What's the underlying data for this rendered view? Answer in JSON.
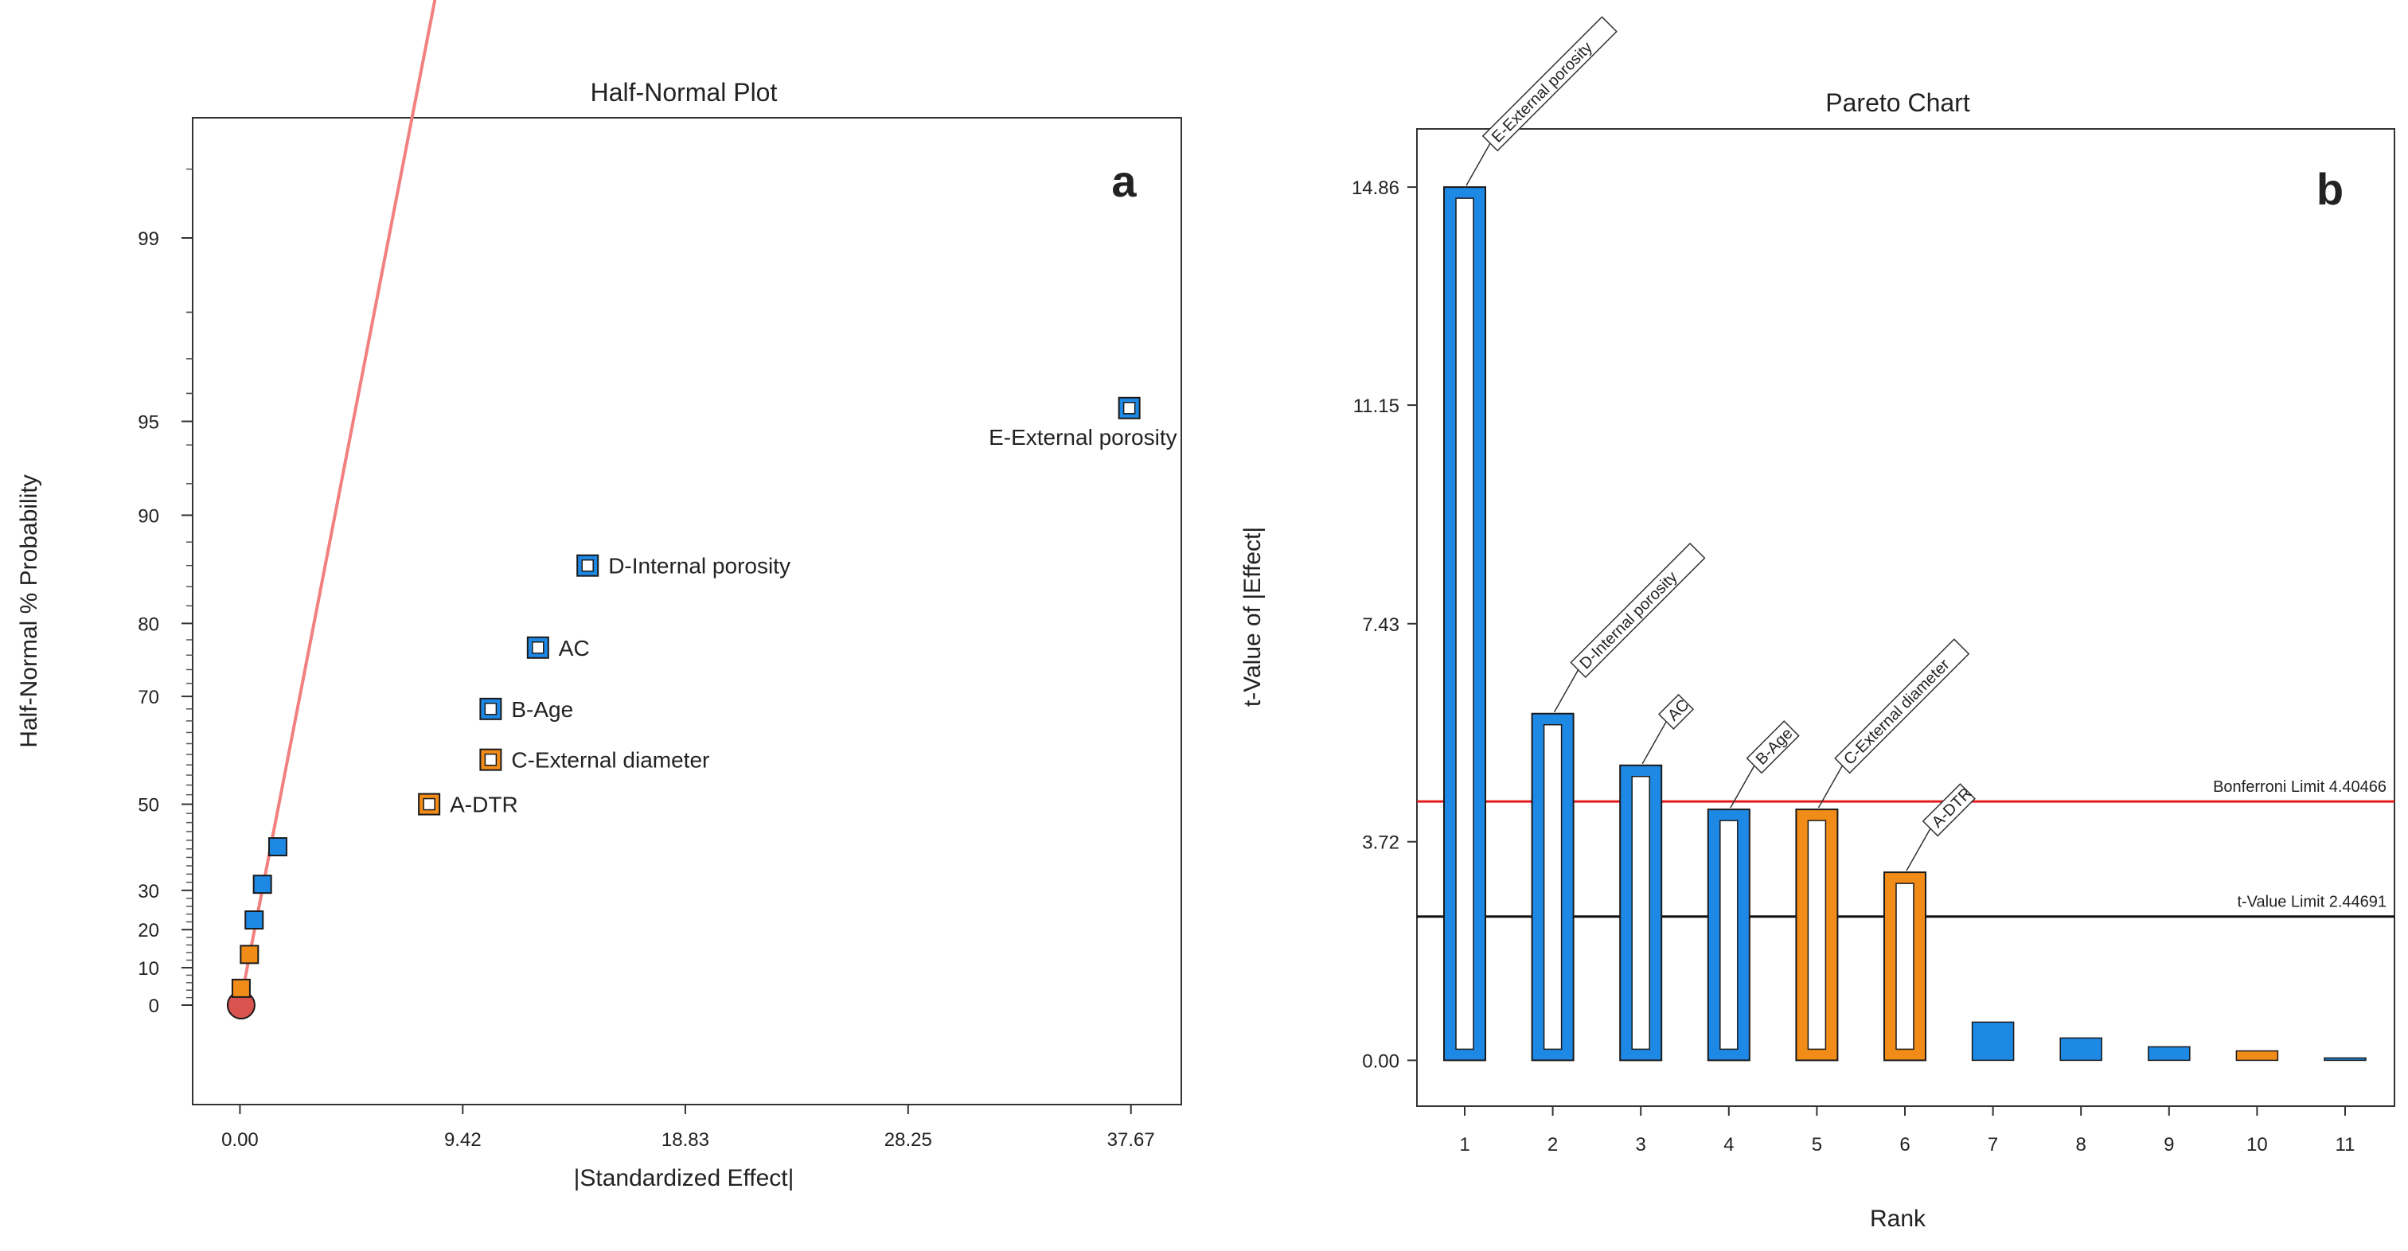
{
  "colors": {
    "blue": "#1e88e5",
    "orange": "#f28c18",
    "outline": "#1a1a1a",
    "fitline": "#f28080",
    "origin": "#d9534f",
    "bonferroni": "#e31a1c",
    "tlimit": "#111111"
  },
  "chart_data": [
    {
      "type": "scatter",
      "title": "Half-Normal Plot",
      "panel_label": "a",
      "xlabel": "|Standardized Effect|",
      "ylabel": "Half-Normal % Probability",
      "xlim": [
        -2.0,
        39.8
      ],
      "x_ticks": [
        {
          "value": 0.0,
          "label": "0.00"
        },
        {
          "value": 9.42,
          "label": "9.42"
        },
        {
          "value": 18.83,
          "label": "18.83"
        },
        {
          "value": 28.25,
          "label": "28.25"
        },
        {
          "value": 37.67,
          "label": "37.67"
        }
      ],
      "y_ticks": [
        {
          "value": 0,
          "label": "0"
        },
        {
          "value": 10,
          "label": "10"
        },
        {
          "value": 20,
          "label": "20"
        },
        {
          "value": 30,
          "label": "30"
        },
        {
          "value": 50,
          "label": "50"
        },
        {
          "value": 70,
          "label": "70"
        },
        {
          "value": 80,
          "label": "80"
        },
        {
          "value": 90,
          "label": "90"
        },
        {
          "value": 95,
          "label": "95"
        },
        {
          "value": 99,
          "label": "99"
        }
      ],
      "fit_line": {
        "x": [
          0.0,
          8.5
        ],
        "p": [
          0,
          99.95
        ]
      },
      "points": [
        {
          "x": 0.05,
          "p": 0,
          "kind": "origin",
          "label": ""
        },
        {
          "x": 0.05,
          "p": 4.5,
          "kind": "error",
          "color": "orange",
          "label": ""
        },
        {
          "x": 0.4,
          "p": 13.5,
          "kind": "error",
          "color": "orange",
          "label": ""
        },
        {
          "x": 0.6,
          "p": 22.5,
          "kind": "error",
          "color": "blue",
          "label": ""
        },
        {
          "x": 0.95,
          "p": 31.5,
          "kind": "error",
          "color": "blue",
          "label": ""
        },
        {
          "x": 1.6,
          "p": 40.5,
          "kind": "error",
          "color": "blue",
          "label": ""
        },
        {
          "x": 8.0,
          "p": 50,
          "kind": "effect",
          "color": "orange",
          "label": "A-DTR"
        },
        {
          "x": 10.6,
          "p": 59,
          "kind": "effect",
          "color": "orange",
          "label": "C-External diameter"
        },
        {
          "x": 10.6,
          "p": 68,
          "kind": "effect",
          "color": "blue",
          "label": "B-Age"
        },
        {
          "x": 12.6,
          "p": 77,
          "kind": "effect",
          "color": "blue",
          "label": "AC"
        },
        {
          "x": 14.7,
          "p": 86,
          "kind": "effect",
          "color": "blue",
          "label": "D-Internal porosity"
        },
        {
          "x": 37.6,
          "p": 95.5,
          "kind": "effect",
          "color": "blue",
          "label": "E-External porosity"
        }
      ]
    },
    {
      "type": "bar",
      "title": "Pareto Chart",
      "panel_label": "b",
      "xlabel": "Rank",
      "ylabel": "t-Value of |Effect|",
      "ylim": [
        -0.78,
        15.85
      ],
      "y_ticks": [
        {
          "value": 0.0,
          "label": "0.00"
        },
        {
          "value": 3.72,
          "label": "3.72"
        },
        {
          "value": 7.43,
          "label": "7.43"
        },
        {
          "value": 11.15,
          "label": "11.15"
        },
        {
          "value": 14.86,
          "label": "14.86"
        }
      ],
      "categories": [
        "1",
        "2",
        "3",
        "4",
        "5",
        "6",
        "7",
        "8",
        "9",
        "10",
        "11"
      ],
      "bars": [
        {
          "rank": "1",
          "value": 14.86,
          "color": "blue",
          "effect_type": "significant",
          "label": "E-External porosity"
        },
        {
          "rank": "2",
          "value": 5.9,
          "color": "blue",
          "effect_type": "significant",
          "label": "D-Internal porosity"
        },
        {
          "rank": "3",
          "value": 5.02,
          "color": "blue",
          "effect_type": "significant",
          "label": "AC"
        },
        {
          "rank": "4",
          "value": 4.27,
          "color": "blue",
          "effect_type": "significant",
          "label": "B-Age"
        },
        {
          "rank": "5",
          "value": 4.27,
          "color": "orange",
          "effect_type": "significant",
          "label": "C-External diameter"
        },
        {
          "rank": "6",
          "value": 3.2,
          "color": "orange",
          "effect_type": "significant",
          "label": "A-DTR"
        },
        {
          "rank": "7",
          "value": 0.65,
          "color": "blue",
          "effect_type": "error",
          "label": ""
        },
        {
          "rank": "8",
          "value": 0.38,
          "color": "blue",
          "effect_type": "error",
          "label": ""
        },
        {
          "rank": "9",
          "value": 0.23,
          "color": "blue",
          "effect_type": "error",
          "label": ""
        },
        {
          "rank": "10",
          "value": 0.16,
          "color": "orange",
          "effect_type": "error",
          "label": ""
        },
        {
          "rank": "11",
          "value": 0.02,
          "color": "blue",
          "effect_type": "error",
          "label": ""
        }
      ],
      "reference_lines": [
        {
          "name": "Bonferroni Limit",
          "value": 4.40466,
          "label": "Bonferroni Limit 4.40466",
          "color": "bonferroni"
        },
        {
          "name": "t-Value Limit",
          "value": 2.44691,
          "label": "t-Value Limit 2.44691",
          "color": "tlimit"
        }
      ]
    }
  ]
}
